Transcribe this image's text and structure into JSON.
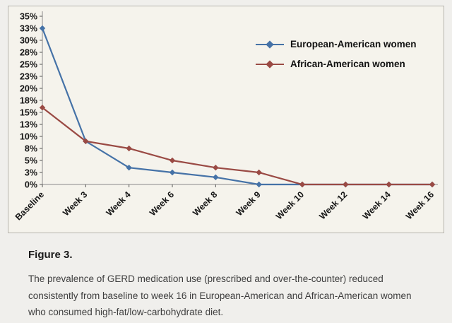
{
  "figure": {
    "label": "Figure 3.",
    "caption": "The prevalence of GERD medication use (prescribed and over-the-counter) reduced consistently from baseline to week 16 in European-American and African-American women who consumed high-fat/low-carbohydrate diet."
  },
  "chart_data": {
    "type": "line",
    "title": "",
    "xlabel": "",
    "ylabel": "",
    "grid": false,
    "legend_position": "top-right",
    "categories": [
      "Baseline",
      "Week 3",
      "Week 4",
      "Week 6",
      "Week 8",
      "Week 9",
      "Week 10",
      "Week 12",
      "Week 14",
      "Week 16"
    ],
    "series": [
      {
        "name": "European-American women",
        "color": "#4572a7",
        "values": [
          32.5,
          9,
          3.5,
          2.5,
          1.5,
          0,
          0,
          0,
          0,
          0
        ]
      },
      {
        "name": "African-American women",
        "color": "#9a4a44",
        "values": [
          16,
          9,
          7.5,
          5,
          3.5,
          2.5,
          0,
          0,
          0,
          0
        ]
      }
    ],
    "ylim": [
      0,
      35
    ],
    "ytick_step": 2.5,
    "ytick_labels": [
      "0%",
      "3%",
      "5%",
      "8%",
      "10%",
      "13%",
      "15%",
      "18%",
      "20%",
      "23%",
      "25%",
      "28%",
      "30%",
      "33%",
      "35%"
    ]
  }
}
